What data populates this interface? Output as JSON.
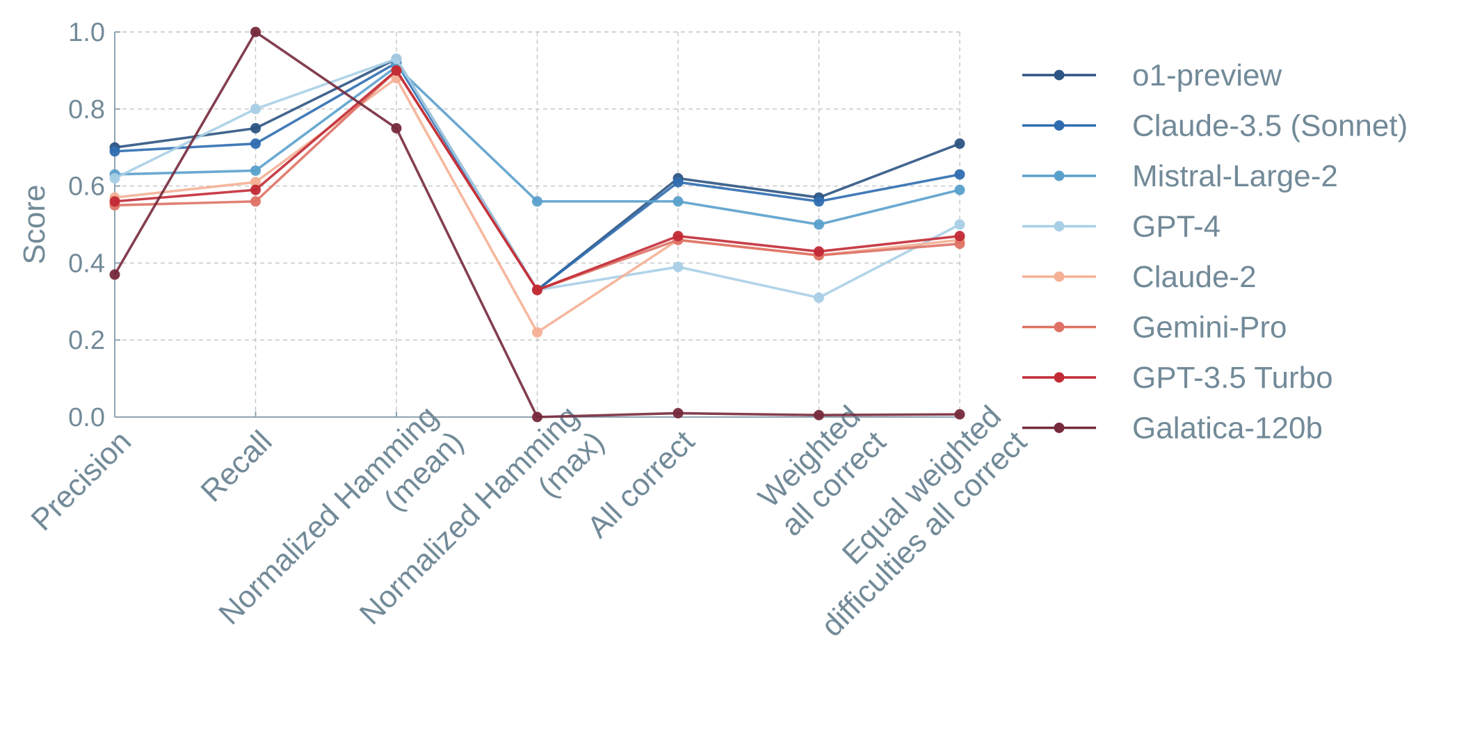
{
  "chart_data": {
    "type": "line",
    "title": "",
    "xlabel": "",
    "ylabel": "Score",
    "ylim": [
      0,
      1.0
    ],
    "yticks": [
      "0.0",
      "0.2",
      "0.4",
      "0.6",
      "0.8",
      "1.0"
    ],
    "grid": true,
    "legend_position": "right",
    "categories": [
      [
        "Precision"
      ],
      [
        "Recall"
      ],
      [
        "Normalized Hamming",
        "(mean)"
      ],
      [
        "Normalized Hamming",
        "(max)"
      ],
      [
        "All correct"
      ],
      [
        "Weighted",
        "all correct"
      ],
      [
        "Equal weighted",
        "difficulties all correct"
      ]
    ],
    "series": [
      {
        "name": "o1-preview",
        "color": "#2d5482",
        "values": [
          0.7,
          0.75,
          0.93,
          0.33,
          0.62,
          0.57,
          0.71
        ]
      },
      {
        "name": "Claude-3.5 (Sonnet)",
        "color": "#2f6db0",
        "values": [
          0.69,
          0.71,
          0.92,
          0.33,
          0.61,
          0.56,
          0.63
        ]
      },
      {
        "name": "Mistral-Large-2",
        "color": "#5aa0cc",
        "values": [
          0.63,
          0.64,
          0.91,
          0.56,
          0.56,
          0.5,
          0.59
        ]
      },
      {
        "name": "GPT-4",
        "color": "#a8cfe6",
        "values": [
          0.62,
          0.8,
          0.93,
          0.33,
          0.39,
          0.31,
          0.5
        ]
      },
      {
        "name": "Claude-2",
        "color": "#f4b095",
        "values": [
          0.57,
          0.61,
          0.88,
          0.22,
          0.46,
          0.42,
          0.46
        ]
      },
      {
        "name": "Gemini-Pro",
        "color": "#de7265",
        "values": [
          0.55,
          0.56,
          0.9,
          0.33,
          0.46,
          0.42,
          0.45
        ]
      },
      {
        "name": "GPT-3.5 Turbo",
        "color": "#c22a35",
        "values": [
          0.56,
          0.59,
          0.9,
          0.33,
          0.47,
          0.43,
          0.47
        ]
      },
      {
        "name": "Galatica-120b",
        "color": "#762a3c",
        "values": [
          0.37,
          1.0,
          0.75,
          0.0,
          0.01,
          0.005,
          0.007
        ]
      }
    ]
  }
}
